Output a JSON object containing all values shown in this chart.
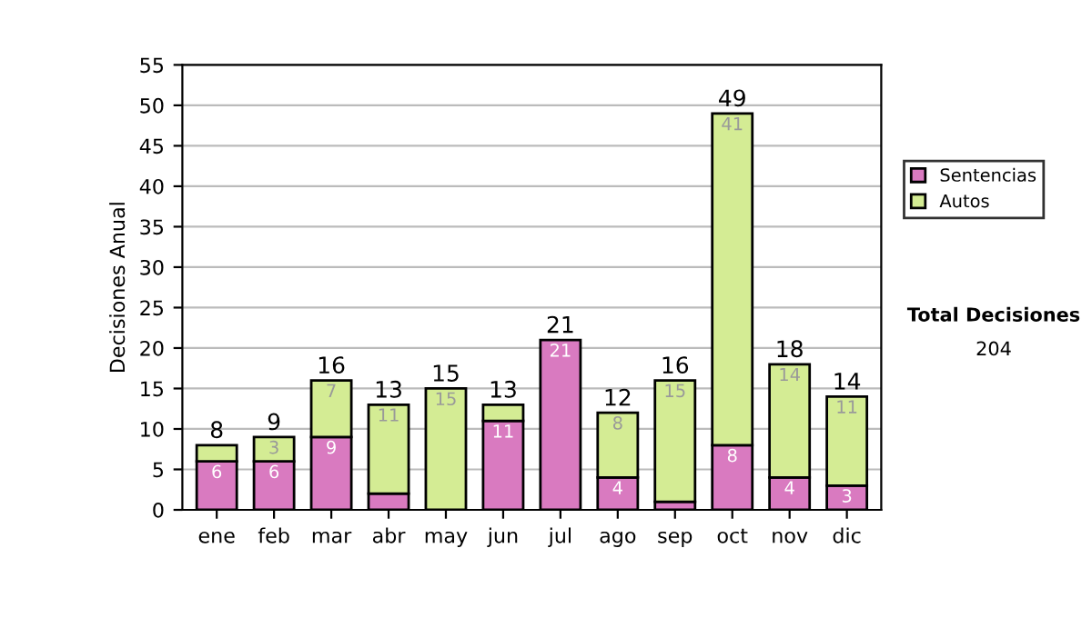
{
  "chart_data": {
    "type": "bar",
    "stacked": true,
    "ylabel": "Decisiones Anual",
    "categories": [
      "ene",
      "feb",
      "mar",
      "abr",
      "may",
      "jun",
      "jul",
      "ago",
      "sep",
      "oct",
      "nov",
      "dic"
    ],
    "series": [
      {
        "name": "Sentencias",
        "color": "#d97ac0",
        "values": [
          6,
          6,
          9,
          2,
          0,
          11,
          21,
          4,
          1,
          8,
          4,
          3
        ],
        "value_labels": [
          "6",
          "6",
          "9",
          null,
          null,
          "11",
          "21",
          "4",
          null,
          "8",
          "4",
          "3"
        ]
      },
      {
        "name": "Autos",
        "color": "#d4ec94",
        "values": [
          2,
          3,
          7,
          11,
          15,
          2,
          null,
          8,
          15,
          41,
          14,
          11
        ],
        "value_labels": [
          null,
          "3",
          "7",
          "11",
          "15",
          null,
          null,
          "8",
          "15",
          "41",
          "14",
          "11"
        ]
      }
    ],
    "totals": [
      "8",
      "9",
      "16",
      "13",
      "15",
      "13",
      "21",
      "12",
      "16",
      "49",
      "18",
      "14"
    ],
    "ylim": [
      0,
      55
    ],
    "yticks": [
      0,
      5,
      10,
      15,
      20,
      25,
      30,
      35,
      40,
      45,
      50,
      55
    ],
    "grid": "y",
    "legend": "right",
    "annotations": [
      "Total Decisiones",
      "204"
    ]
  }
}
